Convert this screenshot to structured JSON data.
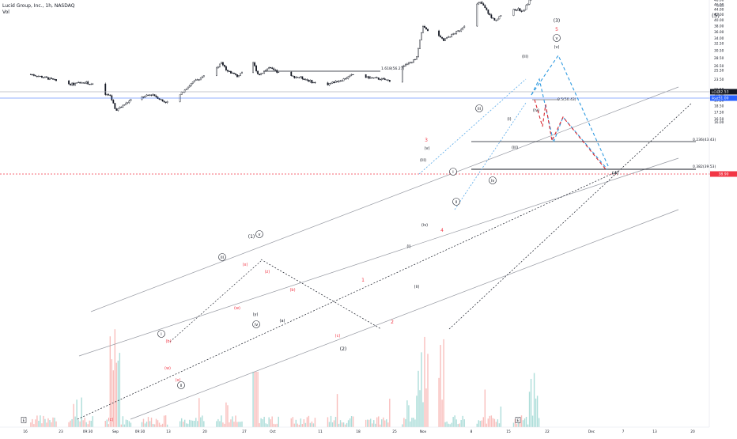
{
  "header": {
    "title": "Lucid Group, Inc., 1h, NASDAQ",
    "volume_label": "Vol"
  },
  "price_axis": {
    "currency": "USD",
    "ticks": [
      "64.00",
      "60.00",
      "56.00",
      "52.00",
      "50.00",
      "48.00",
      "46.00",
      "44.00",
      "42.00",
      "40.00",
      "38.00",
      "36.00",
      "34.00",
      "32.50",
      "30.50",
      "28.50",
      "26.50",
      "25.50",
      "23.50",
      "21.50",
      "20.50",
      "19.50",
      "18.50",
      "17.50",
      "16.50",
      "16.00"
    ]
  },
  "time_axis": {
    "ticks": [
      "16",
      "23",
      "09:30",
      "Sep",
      "09:30",
      "13",
      "20",
      "27",
      "Oct",
      "11",
      "18",
      "25",
      "Nov",
      "8",
      "15",
      "22",
      "Dec",
      "7",
      "13",
      "20"
    ]
  },
  "badges": {
    "symbol": "LCID",
    "symbol_price": "52.53",
    "prepost": "Post",
    "prepost_price": "51.00",
    "level": "38.90",
    "earnings": "E"
  },
  "fib_labels": {
    "ext": "1.618(56.27)",
    "half": "0.5(50.43)",
    "f236": "0.236(43.43)",
    "f382": "0.382(39.53)"
  },
  "wave_labels": {
    "w5_outer": "(5)",
    "w3_black": "(3)",
    "w5_red": "5",
    "wv_circled": "v",
    "wv_paren": "(v)",
    "wiii_top": "(iii)",
    "wiv_right": "(iv)",
    "wi_right": "(i)",
    "wiii_mid": "(iii)",
    "w3_red": "3",
    "wv_left": "(v)",
    "wiii_left": "(iii)",
    "wiv_left": "(iv)",
    "w4_red": "4",
    "wii_circled": "ii",
    "wiii_circled": "iii",
    "wi_circled": "i",
    "wiv_circled": "iv",
    "wi_low": "(i)",
    "wii_low": "(ii)",
    "w1_red": "1",
    "w2_red": "2",
    "w1_black": "(1)",
    "wiii_circ_sep": "iii",
    "wv_circ_sep": "v",
    "wx_red": "(x)",
    "wz_red": "(z)",
    "wb_red": "(b)",
    "wa_red": "(a)",
    "wy_red": "(y)",
    "ww_red": "(w)",
    "wc_red": "(c)",
    "wiv_circ_sep": "iv",
    "wa_sep": "(a)",
    "wb_sep": "(b)",
    "wc_sep": "(c)",
    "ww_sep": "(w)",
    "wx_sep": "(x)",
    "wy_sep": "(y)",
    "w2_black": "(2)",
    "wi_circ_aug": "i",
    "wii_circ_aug": "ii",
    "wiv_black": "(4)"
  },
  "chart_data": {
    "type": "candlestick",
    "title": "Lucid Group, Inc., 1h, NASDAQ",
    "y_scale": "log",
    "grid": false,
    "price_path": [
      [
        "Aug 16",
        24.6
      ],
      [
        "Aug 23",
        22.6
      ],
      [
        "Aug 27",
        20.7
      ],
      [
        "Sep 1",
        17.8
      ],
      [
        "Sep 3",
        19.6
      ],
      [
        "Sep 13",
        19.2
      ],
      [
        "Sep 20",
        24.5
      ],
      [
        "Sep 23",
        27.4
      ],
      [
        "Sep 27",
        24.4
      ],
      [
        "Sep 30",
        26.2
      ],
      [
        "Oct 4",
        24.4
      ],
      [
        "Oct 11",
        22.6
      ],
      [
        "Oct 18",
        24.3
      ],
      [
        "Oct 24",
        23.6
      ],
      [
        "Oct 27",
        27.6
      ],
      [
        "Oct 29",
        36.2
      ],
      [
        "Nov 1",
        34.5
      ],
      [
        "Nov 4",
        42.0
      ],
      [
        "Nov 5",
        46.9
      ],
      [
        "Nov 8",
        39.9
      ],
      [
        "Nov 11",
        44.2
      ],
      [
        "Nov 15",
        45.0
      ],
      [
        "Nov 17",
        57.1
      ],
      [
        "Nov 18",
        52.5
      ]
    ],
    "last_price": 52.53,
    "post_price": 51.0,
    "horizontal_levels": [
      52.53,
      51.0,
      38.9
    ],
    "fibonacci": [
      {
        "ratio": "1.618",
        "price": 56.27
      },
      {
        "ratio": "0.5",
        "price": 50.43
      },
      {
        "ratio": "0.236",
        "price": 43.43
      },
      {
        "ratio": "0.382",
        "price": 39.53
      }
    ]
  }
}
